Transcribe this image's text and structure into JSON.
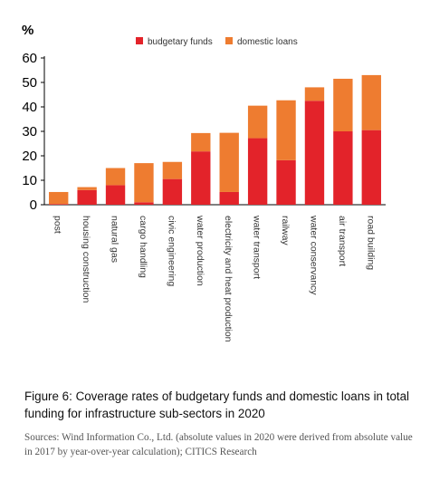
{
  "chart_data": {
    "type": "bar",
    "stacked": true,
    "ylabel": "%",
    "ylim": [
      0,
      60
    ],
    "yticks": [
      0,
      10,
      20,
      30,
      40,
      50,
      60
    ],
    "legend_position": "top",
    "categories": [
      "post",
      "housing construction",
      "natural gas",
      "cargo handling",
      "civic engineering",
      "water production",
      "electricity and heat production",
      "water transport",
      "railway",
      "water conservancy",
      "air transport",
      "road building"
    ],
    "series": [
      {
        "name": "budgetary funds",
        "color": "#e3232a",
        "values": [
          0.3,
          6,
          8,
          1,
          10.5,
          21.8,
          5.2,
          27.2,
          18.2,
          42.5,
          30,
          30.5
        ]
      },
      {
        "name": "domestic loans",
        "color": "#ee7c30",
        "values": [
          4.9,
          1.2,
          7,
          16,
          7,
          7.5,
          24.2,
          13.3,
          24.5,
          5.5,
          21.5,
          22.5
        ]
      }
    ]
  },
  "caption": {
    "title": "Figure 6: Coverage rates of budgetary funds and domestic loans in total funding for infrastructure sub-sectors in 2020",
    "source": "Sources: Wind Information Co., Ltd. (absolute values in 2020 were derived from absolute value in 2017 by year-over-year calculation); CITICS Research"
  }
}
